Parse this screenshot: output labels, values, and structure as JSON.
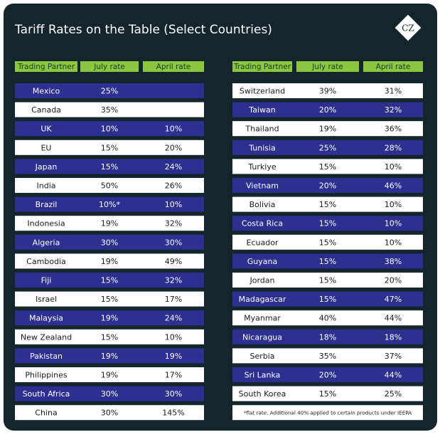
{
  "header": {
    "title": "Tariff Rates on the Table (Select Countries)",
    "logo": "CZ"
  },
  "tables": [
    {
      "columns": [
        "Trading Partner",
        "July rate",
        "April rate"
      ],
      "rows": [
        [
          "Mexico",
          "25%",
          null
        ],
        [
          "Canada",
          "35%",
          null
        ],
        [
          "UK",
          "10%",
          "10%"
        ],
        [
          "EU",
          "15%",
          "20%"
        ],
        [
          "Japan",
          "15%",
          "24%"
        ],
        [
          "India",
          "50%",
          "26%"
        ],
        [
          "Brazil",
          "10%*",
          "10%"
        ],
        [
          "Indonesia",
          "19%",
          "32%"
        ],
        [
          "Algeria",
          "30%",
          "30%"
        ],
        [
          "Cambodia",
          "19%",
          "49%"
        ],
        [
          "Fiji",
          "15%",
          "32%"
        ],
        [
          "Israel",
          "15%",
          "17%"
        ],
        [
          "Malaysia",
          "19%",
          "24%"
        ],
        [
          "New Zealand",
          "15%",
          "10%"
        ],
        [
          "Pakistan",
          "19%",
          "19%"
        ],
        [
          "Philippines",
          "19%",
          "17%"
        ],
        [
          "South Africa",
          "30%",
          "30%"
        ],
        [
          "China",
          "30%",
          "145%"
        ]
      ]
    },
    {
      "columns": [
        "Trading Partner",
        "July rate",
        "April rate"
      ],
      "rows": [
        [
          "Switzerland",
          "39%",
          "31%"
        ],
        [
          "Taiwan",
          "20%",
          "32%"
        ],
        [
          "Thailand",
          "19%",
          "36%"
        ],
        [
          "Tunisia",
          "25%",
          "28%"
        ],
        [
          "Turkiye",
          "15%",
          "10%"
        ],
        [
          "Vietnam",
          "20%",
          "46%"
        ],
        [
          "Bolivia",
          "15%",
          "10%"
        ],
        [
          "Costa Rica",
          "15%",
          "10%"
        ],
        [
          "Ecuador",
          "15%",
          "10%"
        ],
        [
          "Guyana",
          "15%",
          "38%"
        ],
        [
          "Jordan",
          "15%",
          "20%"
        ],
        [
          "Madagascar",
          "15%",
          "47%"
        ],
        [
          "Myanmar",
          "40%",
          "44%"
        ],
        [
          "Nicaragua",
          "18%",
          "18%"
        ],
        [
          "Serbia",
          "35%",
          "37%"
        ],
        [
          "Sri Lanka",
          "20%",
          "44%"
        ],
        [
          "South Korea",
          "15%",
          "25%"
        ]
      ]
    }
  ],
  "footnote": "*flat rate. Additional 40% applied to certain products under IEEPA"
}
